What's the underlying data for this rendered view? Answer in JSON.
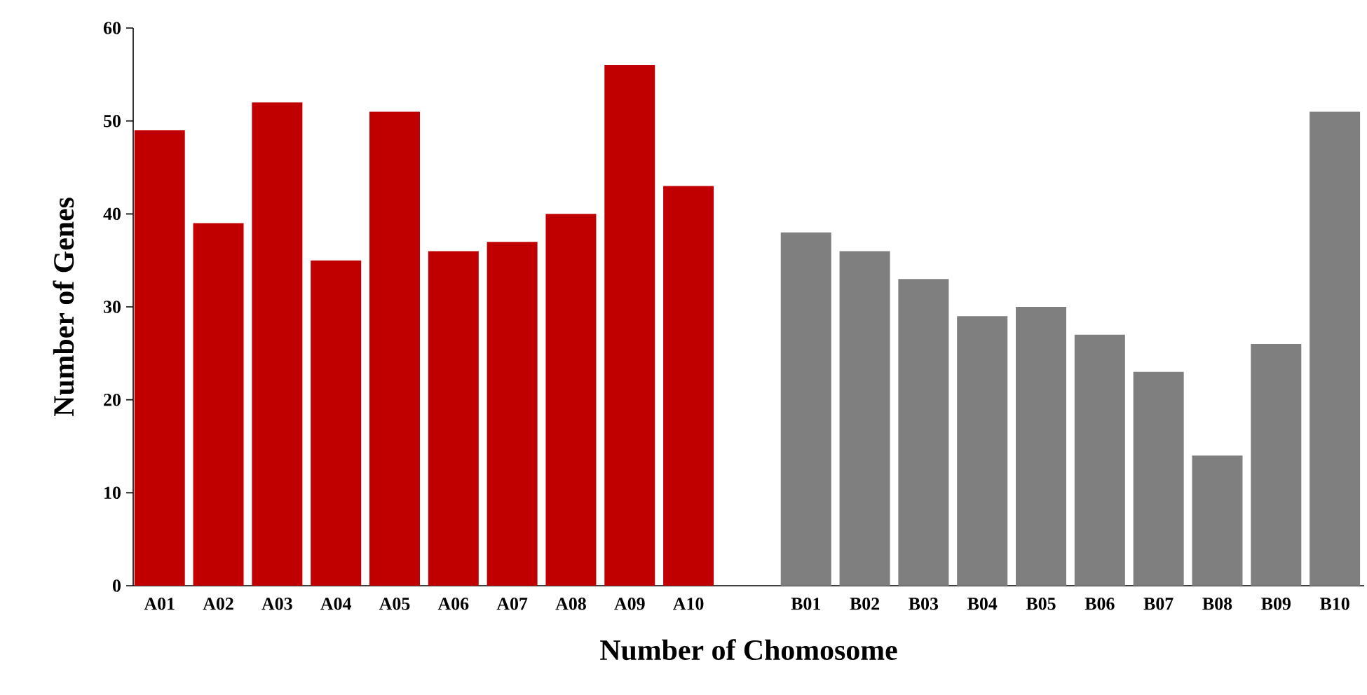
{
  "chart_data": {
    "type": "bar",
    "xlabel": "Number of Chomosome",
    "ylabel": "Number of Genes",
    "categories": [
      "A01",
      "A02",
      "A03",
      "A04",
      "A05",
      "A06",
      "A07",
      "A08",
      "A09",
      "A10",
      null,
      "B01",
      "B02",
      "B03",
      "B04",
      "B05",
      "B06",
      "B07",
      "B08",
      "B09",
      "B10"
    ],
    "values": [
      49,
      39,
      52,
      35,
      51,
      36,
      37,
      40,
      56,
      43,
      null,
      38,
      36,
      33,
      29,
      30,
      27,
      23,
      14,
      26,
      51
    ],
    "colors": [
      "#c00000",
      "#c00000",
      "#c00000",
      "#c00000",
      "#c00000",
      "#c00000",
      "#c00000",
      "#c00000",
      "#c00000",
      "#c00000",
      null,
      "#7f7f7f",
      "#7f7f7f",
      "#7f7f7f",
      "#7f7f7f",
      "#7f7f7f",
      "#7f7f7f",
      "#7f7f7f",
      "#7f7f7f",
      "#7f7f7f",
      "#7f7f7f"
    ],
    "ylim": [
      0,
      60
    ],
    "yticks": [
      0,
      10,
      20,
      30,
      40,
      50,
      60
    ],
    "grid": false
  }
}
